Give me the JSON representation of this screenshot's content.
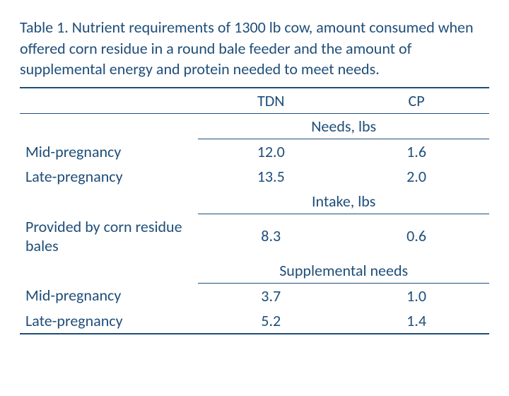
{
  "colors": {
    "text": "#1f4e79",
    "rule": "#1f4e79",
    "background": "#ffffff"
  },
  "title": "Table 1. Nutrient requirements of 1300 lb cow, amount consumed when offered corn residue in a round bale feeder and the amount of supplemental energy and protein needed to meet needs.",
  "columns": {
    "tdn": "TDN",
    "cp": "CP"
  },
  "sections": [
    {
      "header": "Needs, lbs",
      "rows": [
        {
          "label": "Mid-pregnancy",
          "tdn": "12.0",
          "cp": "1.6"
        },
        {
          "label": "Late-pregnancy",
          "tdn": "13.5",
          "cp": "2.0"
        }
      ]
    },
    {
      "header": "Intake, lbs",
      "rows": [
        {
          "label": "Provided by corn residue bales",
          "tdn": "8.3",
          "cp": "0.6"
        }
      ]
    },
    {
      "header": "Supplemental needs",
      "rows": [
        {
          "label": "Mid-pregnancy",
          "tdn": "3.7",
          "cp": "1.0"
        },
        {
          "label": "Late-pregnancy",
          "tdn": "5.2",
          "cp": "1.4"
        }
      ]
    }
  ]
}
